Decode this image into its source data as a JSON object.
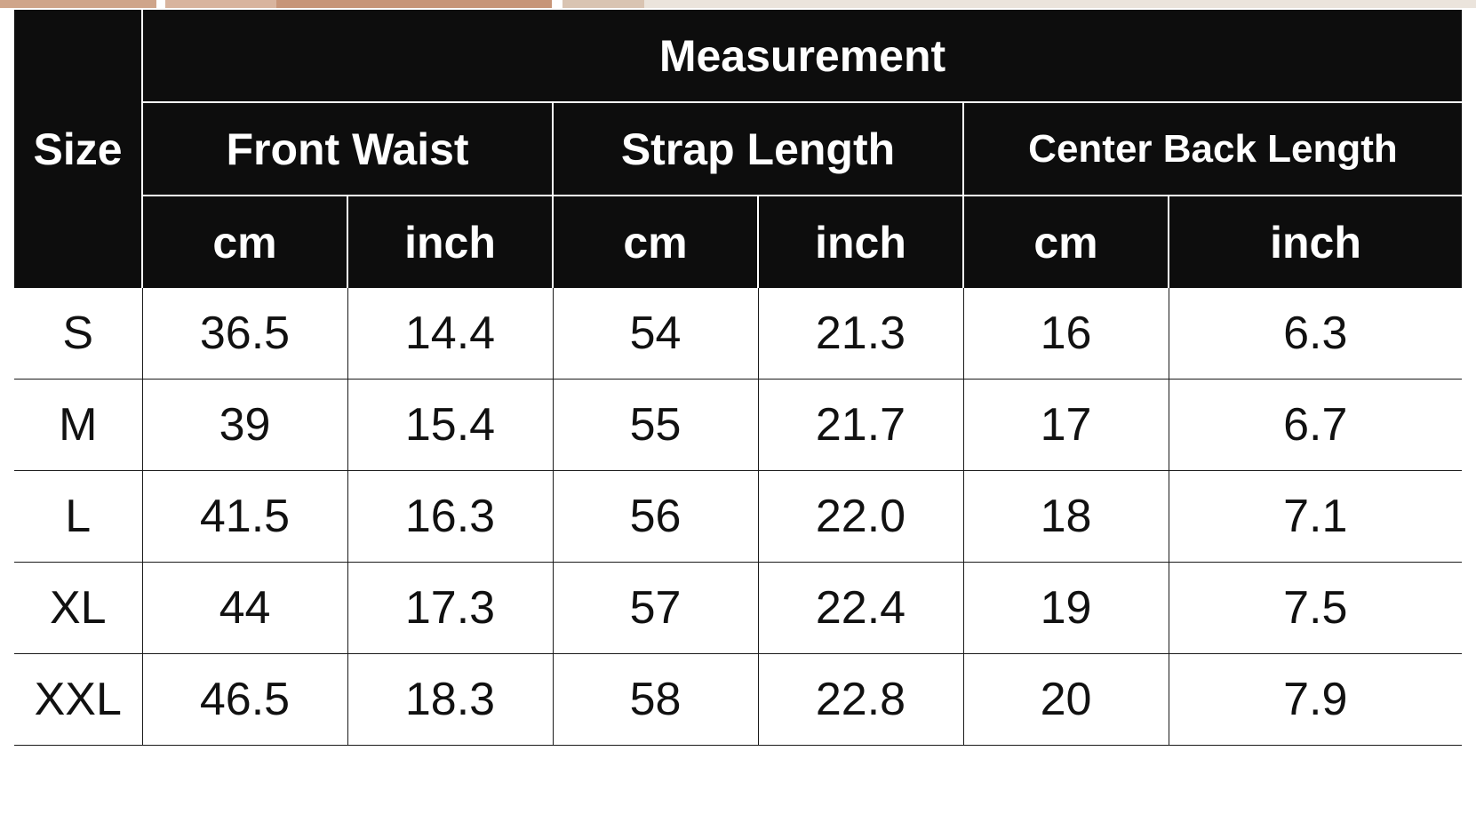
{
  "header": {
    "size_label": "Size",
    "measurement_label": "Measurement",
    "groups": [
      {
        "label": "Front Waist",
        "units": [
          "cm",
          "inch"
        ]
      },
      {
        "label": "Strap Length",
        "units": [
          "cm",
          "inch"
        ]
      },
      {
        "label": "Center Back Length",
        "units": [
          "cm",
          "inch"
        ]
      }
    ]
  },
  "rows": [
    {
      "size": "S",
      "values": [
        "36.5",
        "14.4",
        "54",
        "21.3",
        "16",
        "6.3"
      ]
    },
    {
      "size": "M",
      "values": [
        "39",
        "15.4",
        "55",
        "21.7",
        "17",
        "6.7"
      ]
    },
    {
      "size": "L",
      "values": [
        "41.5",
        "16.3",
        "56",
        "22.0",
        "18",
        "7.1"
      ]
    },
    {
      "size": "XL",
      "values": [
        "44",
        "17.3",
        "57",
        "22.4",
        "19",
        "7.5"
      ]
    },
    {
      "size": "XXL",
      "values": [
        "46.5",
        "18.3",
        "58",
        "22.8",
        "20",
        "7.9"
      ]
    }
  ]
}
